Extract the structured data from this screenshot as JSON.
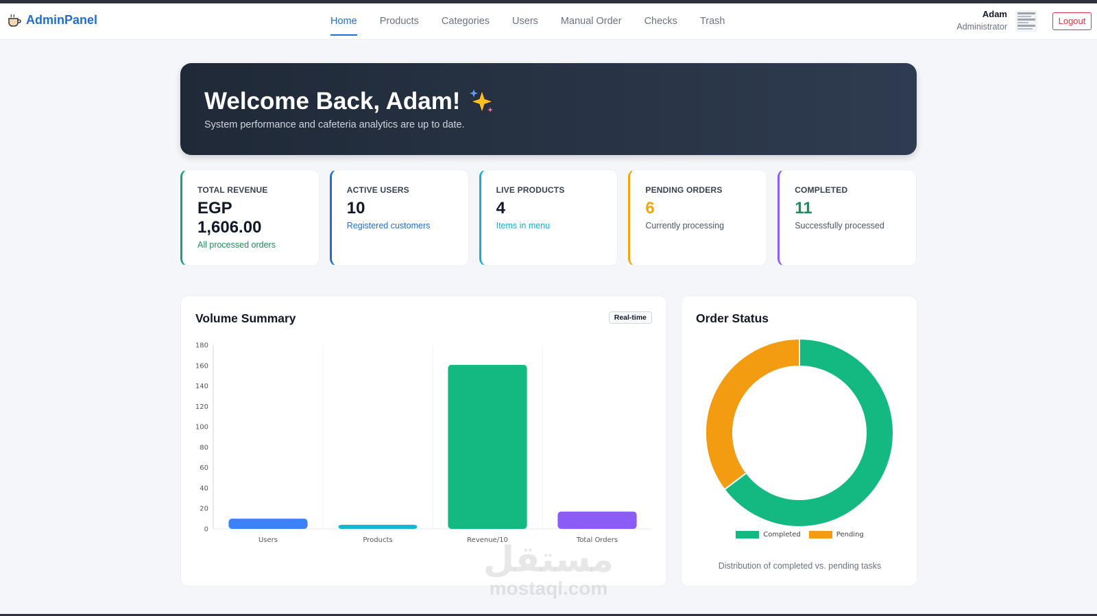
{
  "brand": {
    "name": "AdminPanel",
    "icon": "coffee-cup-icon"
  },
  "nav": {
    "items": [
      {
        "label": "Home",
        "active": true
      },
      {
        "label": "Products",
        "active": false
      },
      {
        "label": "Categories",
        "active": false
      },
      {
        "label": "Users",
        "active": false
      },
      {
        "label": "Manual Order",
        "active": false
      },
      {
        "label": "Checks",
        "active": false
      },
      {
        "label": "Trash",
        "active": false
      }
    ]
  },
  "user": {
    "name": "Adam",
    "role": "Administrator",
    "logout_label": "Logout"
  },
  "hero": {
    "title": "Welcome Back, Adam!",
    "subtitle": "System performance and cafeteria analytics are up to date.",
    "icon": "sparkles-icon"
  },
  "stats": [
    {
      "label": "Total Revenue",
      "value": "EGP 1,606.00",
      "sub": "All processed orders",
      "accent": "#19a17e"
    },
    {
      "label": "Active Users",
      "value": "10",
      "sub": "Registered customers",
      "accent": "#1f6fd1"
    },
    {
      "label": "Live Products",
      "value": "4",
      "sub": "Items in menu",
      "accent": "#14afd1"
    },
    {
      "label": "Pending Orders",
      "value": "6",
      "sub": "Currently processing",
      "accent": "#f4a410"
    },
    {
      "label": "Completed",
      "value": "11",
      "sub": "Successfully processed",
      "accent": "#8b5cf6"
    }
  ],
  "volume": {
    "title": "Volume Summary",
    "badge": "Real-time"
  },
  "order_status": {
    "title": "Order Status",
    "caption": "Distribution of completed vs. pending tasks"
  },
  "chart_data": [
    {
      "type": "bar",
      "title": "Volume Summary",
      "categories": [
        "Users",
        "Products",
        "Revenue/10",
        "Total Orders"
      ],
      "values": [
        10,
        4,
        160.6,
        17
      ],
      "colors": [
        "#3b82f6",
        "#14b8d4",
        "#13b981",
        "#8b5cf6"
      ],
      "ylim": [
        0,
        180
      ],
      "yticks": [
        0,
        20,
        40,
        60,
        80,
        100,
        120,
        140,
        160,
        180
      ],
      "grid": "vertical"
    },
    {
      "type": "pie",
      "title": "Order Status",
      "donut": true,
      "labels": [
        "Completed",
        "Pending"
      ],
      "values": [
        11,
        6
      ],
      "colors": [
        "#13b981",
        "#f39c12"
      ],
      "legend": "bottom"
    }
  ],
  "watermark": {
    "arabic": "مستقل",
    "latin": "mostaql.com"
  }
}
